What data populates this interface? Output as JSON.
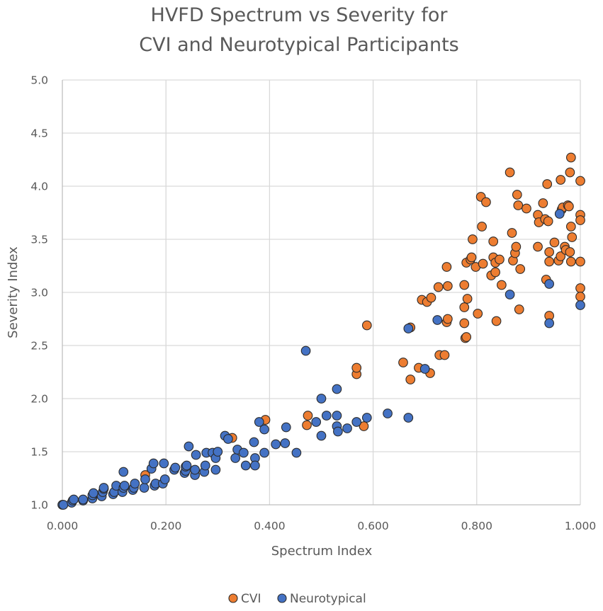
{
  "chart_data": {
    "type": "scatter",
    "title_lines": [
      "HVFD Spectrum vs Severity for",
      "CVI and Neurotypical Participants"
    ],
    "xlabel": "Spectrum Index",
    "ylabel": "Severity Index",
    "xlim": [
      0.0,
      1.0
    ],
    "ylim": [
      1.0,
      5.0
    ],
    "x_ticks": [
      0.0,
      0.2,
      0.4,
      0.6,
      0.8,
      1.0
    ],
    "x_tick_labels": [
      "0.000",
      "0.200",
      "0.400",
      "0.600",
      "0.800",
      "1.000"
    ],
    "y_ticks": [
      1.0,
      1.5,
      2.0,
      2.5,
      3.0,
      3.5,
      4.0,
      4.5,
      5.0
    ],
    "y_tick_labels": [
      "1.0",
      "1.5",
      "2.0",
      "2.5",
      "3.0",
      "3.5",
      "4.0",
      "4.5",
      "5.0"
    ],
    "grid": true,
    "legend_position": "bottom",
    "series": [
      {
        "name": "CVI",
        "color": "#ed7d31",
        "points": [
          [
            0.16,
            1.28
          ],
          [
            0.328,
            1.63
          ],
          [
            0.392,
            1.8
          ],
          [
            0.472,
            1.75
          ],
          [
            0.474,
            1.84
          ],
          [
            0.568,
            2.23
          ],
          [
            0.568,
            2.29
          ],
          [
            0.582,
            1.74
          ],
          [
            0.588,
            2.69
          ],
          [
            0.658,
            2.34
          ],
          [
            0.672,
            2.67
          ],
          [
            0.672,
            2.18
          ],
          [
            0.688,
            2.29
          ],
          [
            0.694,
            2.93
          ],
          [
            0.704,
            2.91
          ],
          [
            0.71,
            2.24
          ],
          [
            0.712,
            2.95
          ],
          [
            0.726,
            3.05
          ],
          [
            0.728,
            2.41
          ],
          [
            0.738,
            2.41
          ],
          [
            0.742,
            2.72
          ],
          [
            0.742,
            3.24
          ],
          [
            0.744,
            2.75
          ],
          [
            0.744,
            3.06
          ],
          [
            0.776,
            3.07
          ],
          [
            0.776,
            2.86
          ],
          [
            0.776,
            2.71
          ],
          [
            0.778,
            2.57
          ],
          [
            0.78,
            2.58
          ],
          [
            0.78,
            3.28
          ],
          [
            0.782,
            2.94
          ],
          [
            0.788,
            3.31
          ],
          [
            0.79,
            3.33
          ],
          [
            0.792,
            3.5
          ],
          [
            0.798,
            3.24
          ],
          [
            0.802,
            2.8
          ],
          [
            0.808,
            3.9
          ],
          [
            0.81,
            3.62
          ],
          [
            0.812,
            3.27
          ],
          [
            0.818,
            3.85
          ],
          [
            0.828,
            3.16
          ],
          [
            0.832,
            3.33
          ],
          [
            0.832,
            3.48
          ],
          [
            0.836,
            3.28
          ],
          [
            0.836,
            3.19
          ],
          [
            0.838,
            2.73
          ],
          [
            0.844,
            3.31
          ],
          [
            0.848,
            3.07
          ],
          [
            0.864,
            4.13
          ],
          [
            0.868,
            3.56
          ],
          [
            0.87,
            3.3
          ],
          [
            0.874,
            3.37
          ],
          [
            0.876,
            3.43
          ],
          [
            0.878,
            3.92
          ],
          [
            0.88,
            3.82
          ],
          [
            0.882,
            2.84
          ],
          [
            0.884,
            3.22
          ],
          [
            0.896,
            3.79
          ],
          [
            0.918,
            3.43
          ],
          [
            0.918,
            3.73
          ],
          [
            0.92,
            3.66
          ],
          [
            0.928,
            3.84
          ],
          [
            0.932,
            3.69
          ],
          [
            0.934,
            3.12
          ],
          [
            0.936,
            4.02
          ],
          [
            0.938,
            3.67
          ],
          [
            0.94,
            3.29
          ],
          [
            0.94,
            2.78
          ],
          [
            0.94,
            3.38
          ],
          [
            0.95,
            3.47
          ],
          [
            0.958,
            3.3
          ],
          [
            0.962,
            3.34
          ],
          [
            0.962,
            4.06
          ],
          [
            0.964,
            3.78
          ],
          [
            0.966,
            3.8
          ],
          [
            0.97,
            3.43
          ],
          [
            0.972,
            3.4
          ],
          [
            0.976,
            3.82
          ],
          [
            0.978,
            3.81
          ],
          [
            0.98,
            3.38
          ],
          [
            0.98,
            4.13
          ],
          [
            0.982,
            4.27
          ],
          [
            0.982,
            3.29
          ],
          [
            0.982,
            3.62
          ],
          [
            0.984,
            3.52
          ],
          [
            1.0,
            4.05
          ],
          [
            1.0,
            3.73
          ],
          [
            1.0,
            3.68
          ],
          [
            1.0,
            3.29
          ],
          [
            1.0,
            3.04
          ],
          [
            1.0,
            2.96
          ]
        ]
      },
      {
        "name": "Neurotypical",
        "color": "#4472c4",
        "points": [
          [
            0.0,
            1.0
          ],
          [
            0.002,
            1.0
          ],
          [
            0.018,
            1.02
          ],
          [
            0.02,
            1.04
          ],
          [
            0.022,
            1.05
          ],
          [
            0.04,
            1.04
          ],
          [
            0.04,
            1.05
          ],
          [
            0.058,
            1.06
          ],
          [
            0.058,
            1.09
          ],
          [
            0.06,
            1.11
          ],
          [
            0.076,
            1.08
          ],
          [
            0.078,
            1.12
          ],
          [
            0.08,
            1.15
          ],
          [
            0.08,
            1.16
          ],
          [
            0.098,
            1.1
          ],
          [
            0.1,
            1.12
          ],
          [
            0.104,
            1.18
          ],
          [
            0.116,
            1.12
          ],
          [
            0.118,
            1.16
          ],
          [
            0.12,
            1.18
          ],
          [
            0.118,
            1.31
          ],
          [
            0.136,
            1.14
          ],
          [
            0.138,
            1.16
          ],
          [
            0.14,
            1.2
          ],
          [
            0.158,
            1.16
          ],
          [
            0.16,
            1.24
          ],
          [
            0.172,
            1.34
          ],
          [
            0.176,
            1.39
          ],
          [
            0.178,
            1.18
          ],
          [
            0.18,
            1.2
          ],
          [
            0.194,
            1.2
          ],
          [
            0.196,
            1.39
          ],
          [
            0.198,
            1.24
          ],
          [
            0.216,
            1.33
          ],
          [
            0.218,
            1.35
          ],
          [
            0.236,
            1.3
          ],
          [
            0.238,
            1.32
          ],
          [
            0.238,
            1.36
          ],
          [
            0.24,
            1.37
          ],
          [
            0.244,
            1.55
          ],
          [
            0.256,
            1.28
          ],
          [
            0.256,
            1.33
          ],
          [
            0.258,
            1.47
          ],
          [
            0.274,
            1.31
          ],
          [
            0.276,
            1.37
          ],
          [
            0.278,
            1.49
          ],
          [
            0.29,
            1.49
          ],
          [
            0.296,
            1.33
          ],
          [
            0.296,
            1.44
          ],
          [
            0.3,
            1.5
          ],
          [
            0.314,
            1.65
          ],
          [
            0.32,
            1.62
          ],
          [
            0.334,
            1.44
          ],
          [
            0.338,
            1.52
          ],
          [
            0.35,
            1.49
          ],
          [
            0.354,
            1.37
          ],
          [
            0.37,
            1.59
          ],
          [
            0.372,
            1.44
          ],
          [
            0.372,
            1.37
          ],
          [
            0.38,
            1.78
          ],
          [
            0.39,
            1.71
          ],
          [
            0.39,
            1.49
          ],
          [
            0.412,
            1.57
          ],
          [
            0.43,
            1.58
          ],
          [
            0.432,
            1.73
          ],
          [
            0.452,
            1.49
          ],
          [
            0.47,
            2.45
          ],
          [
            0.49,
            1.78
          ],
          [
            0.5,
            2.0
          ],
          [
            0.5,
            1.65
          ],
          [
            0.51,
            1.84
          ],
          [
            0.53,
            2.09
          ],
          [
            0.53,
            1.84
          ],
          [
            0.53,
            1.74
          ],
          [
            0.532,
            1.69
          ],
          [
            0.55,
            1.72
          ],
          [
            0.568,
            1.78
          ],
          [
            0.588,
            1.82
          ],
          [
            0.628,
            1.86
          ],
          [
            0.668,
            2.66
          ],
          [
            0.668,
            1.82
          ],
          [
            0.7,
            2.28
          ],
          [
            0.724,
            2.74
          ],
          [
            0.864,
            2.98
          ],
          [
            0.94,
            3.08
          ],
          [
            0.94,
            2.71
          ],
          [
            0.96,
            3.74
          ],
          [
            1.0,
            2.88
          ]
        ]
      }
    ]
  }
}
